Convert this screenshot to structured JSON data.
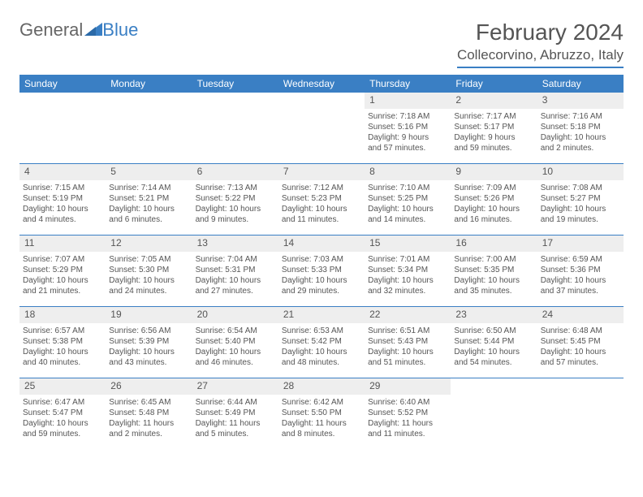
{
  "logo": {
    "text_general": "General",
    "text_blue": "Blue"
  },
  "title": "February 2024",
  "location": "Collecorvino, Abruzzo, Italy",
  "colors": {
    "accent": "#3a7fc4",
    "daynum_bg": "#eeeeee",
    "text": "#555555",
    "background": "#ffffff"
  },
  "daynames": [
    "Sunday",
    "Monday",
    "Tuesday",
    "Wednesday",
    "Thursday",
    "Friday",
    "Saturday"
  ],
  "weeks": [
    {
      "nums": [
        "",
        "",
        "",
        "",
        "1",
        "2",
        "3"
      ],
      "cells": [
        null,
        null,
        null,
        null,
        {
          "sunrise": "Sunrise: 7:18 AM",
          "sunset": "Sunset: 5:16 PM",
          "d1": "Daylight: 9 hours",
          "d2": "and 57 minutes."
        },
        {
          "sunrise": "Sunrise: 7:17 AM",
          "sunset": "Sunset: 5:17 PM",
          "d1": "Daylight: 9 hours",
          "d2": "and 59 minutes."
        },
        {
          "sunrise": "Sunrise: 7:16 AM",
          "sunset": "Sunset: 5:18 PM",
          "d1": "Daylight: 10 hours",
          "d2": "and 2 minutes."
        }
      ]
    },
    {
      "nums": [
        "4",
        "5",
        "6",
        "7",
        "8",
        "9",
        "10"
      ],
      "cells": [
        {
          "sunrise": "Sunrise: 7:15 AM",
          "sunset": "Sunset: 5:19 PM",
          "d1": "Daylight: 10 hours",
          "d2": "and 4 minutes."
        },
        {
          "sunrise": "Sunrise: 7:14 AM",
          "sunset": "Sunset: 5:21 PM",
          "d1": "Daylight: 10 hours",
          "d2": "and 6 minutes."
        },
        {
          "sunrise": "Sunrise: 7:13 AM",
          "sunset": "Sunset: 5:22 PM",
          "d1": "Daylight: 10 hours",
          "d2": "and 9 minutes."
        },
        {
          "sunrise": "Sunrise: 7:12 AM",
          "sunset": "Sunset: 5:23 PM",
          "d1": "Daylight: 10 hours",
          "d2": "and 11 minutes."
        },
        {
          "sunrise": "Sunrise: 7:10 AM",
          "sunset": "Sunset: 5:25 PM",
          "d1": "Daylight: 10 hours",
          "d2": "and 14 minutes."
        },
        {
          "sunrise": "Sunrise: 7:09 AM",
          "sunset": "Sunset: 5:26 PM",
          "d1": "Daylight: 10 hours",
          "d2": "and 16 minutes."
        },
        {
          "sunrise": "Sunrise: 7:08 AM",
          "sunset": "Sunset: 5:27 PM",
          "d1": "Daylight: 10 hours",
          "d2": "and 19 minutes."
        }
      ]
    },
    {
      "nums": [
        "11",
        "12",
        "13",
        "14",
        "15",
        "16",
        "17"
      ],
      "cells": [
        {
          "sunrise": "Sunrise: 7:07 AM",
          "sunset": "Sunset: 5:29 PM",
          "d1": "Daylight: 10 hours",
          "d2": "and 21 minutes."
        },
        {
          "sunrise": "Sunrise: 7:05 AM",
          "sunset": "Sunset: 5:30 PM",
          "d1": "Daylight: 10 hours",
          "d2": "and 24 minutes."
        },
        {
          "sunrise": "Sunrise: 7:04 AM",
          "sunset": "Sunset: 5:31 PM",
          "d1": "Daylight: 10 hours",
          "d2": "and 27 minutes."
        },
        {
          "sunrise": "Sunrise: 7:03 AM",
          "sunset": "Sunset: 5:33 PM",
          "d1": "Daylight: 10 hours",
          "d2": "and 29 minutes."
        },
        {
          "sunrise": "Sunrise: 7:01 AM",
          "sunset": "Sunset: 5:34 PM",
          "d1": "Daylight: 10 hours",
          "d2": "and 32 minutes."
        },
        {
          "sunrise": "Sunrise: 7:00 AM",
          "sunset": "Sunset: 5:35 PM",
          "d1": "Daylight: 10 hours",
          "d2": "and 35 minutes."
        },
        {
          "sunrise": "Sunrise: 6:59 AM",
          "sunset": "Sunset: 5:36 PM",
          "d1": "Daylight: 10 hours",
          "d2": "and 37 minutes."
        }
      ]
    },
    {
      "nums": [
        "18",
        "19",
        "20",
        "21",
        "22",
        "23",
        "24"
      ],
      "cells": [
        {
          "sunrise": "Sunrise: 6:57 AM",
          "sunset": "Sunset: 5:38 PM",
          "d1": "Daylight: 10 hours",
          "d2": "and 40 minutes."
        },
        {
          "sunrise": "Sunrise: 6:56 AM",
          "sunset": "Sunset: 5:39 PM",
          "d1": "Daylight: 10 hours",
          "d2": "and 43 minutes."
        },
        {
          "sunrise": "Sunrise: 6:54 AM",
          "sunset": "Sunset: 5:40 PM",
          "d1": "Daylight: 10 hours",
          "d2": "and 46 minutes."
        },
        {
          "sunrise": "Sunrise: 6:53 AM",
          "sunset": "Sunset: 5:42 PM",
          "d1": "Daylight: 10 hours",
          "d2": "and 48 minutes."
        },
        {
          "sunrise": "Sunrise: 6:51 AM",
          "sunset": "Sunset: 5:43 PM",
          "d1": "Daylight: 10 hours",
          "d2": "and 51 minutes."
        },
        {
          "sunrise": "Sunrise: 6:50 AM",
          "sunset": "Sunset: 5:44 PM",
          "d1": "Daylight: 10 hours",
          "d2": "and 54 minutes."
        },
        {
          "sunrise": "Sunrise: 6:48 AM",
          "sunset": "Sunset: 5:45 PM",
          "d1": "Daylight: 10 hours",
          "d2": "and 57 minutes."
        }
      ]
    },
    {
      "nums": [
        "25",
        "26",
        "27",
        "28",
        "29",
        "",
        ""
      ],
      "cells": [
        {
          "sunrise": "Sunrise: 6:47 AM",
          "sunset": "Sunset: 5:47 PM",
          "d1": "Daylight: 10 hours",
          "d2": "and 59 minutes."
        },
        {
          "sunrise": "Sunrise: 6:45 AM",
          "sunset": "Sunset: 5:48 PM",
          "d1": "Daylight: 11 hours",
          "d2": "and 2 minutes."
        },
        {
          "sunrise": "Sunrise: 6:44 AM",
          "sunset": "Sunset: 5:49 PM",
          "d1": "Daylight: 11 hours",
          "d2": "and 5 minutes."
        },
        {
          "sunrise": "Sunrise: 6:42 AM",
          "sunset": "Sunset: 5:50 PM",
          "d1": "Daylight: 11 hours",
          "d2": "and 8 minutes."
        },
        {
          "sunrise": "Sunrise: 6:40 AM",
          "sunset": "Sunset: 5:52 PM",
          "d1": "Daylight: 11 hours",
          "d2": "and 11 minutes."
        },
        null,
        null
      ]
    }
  ]
}
